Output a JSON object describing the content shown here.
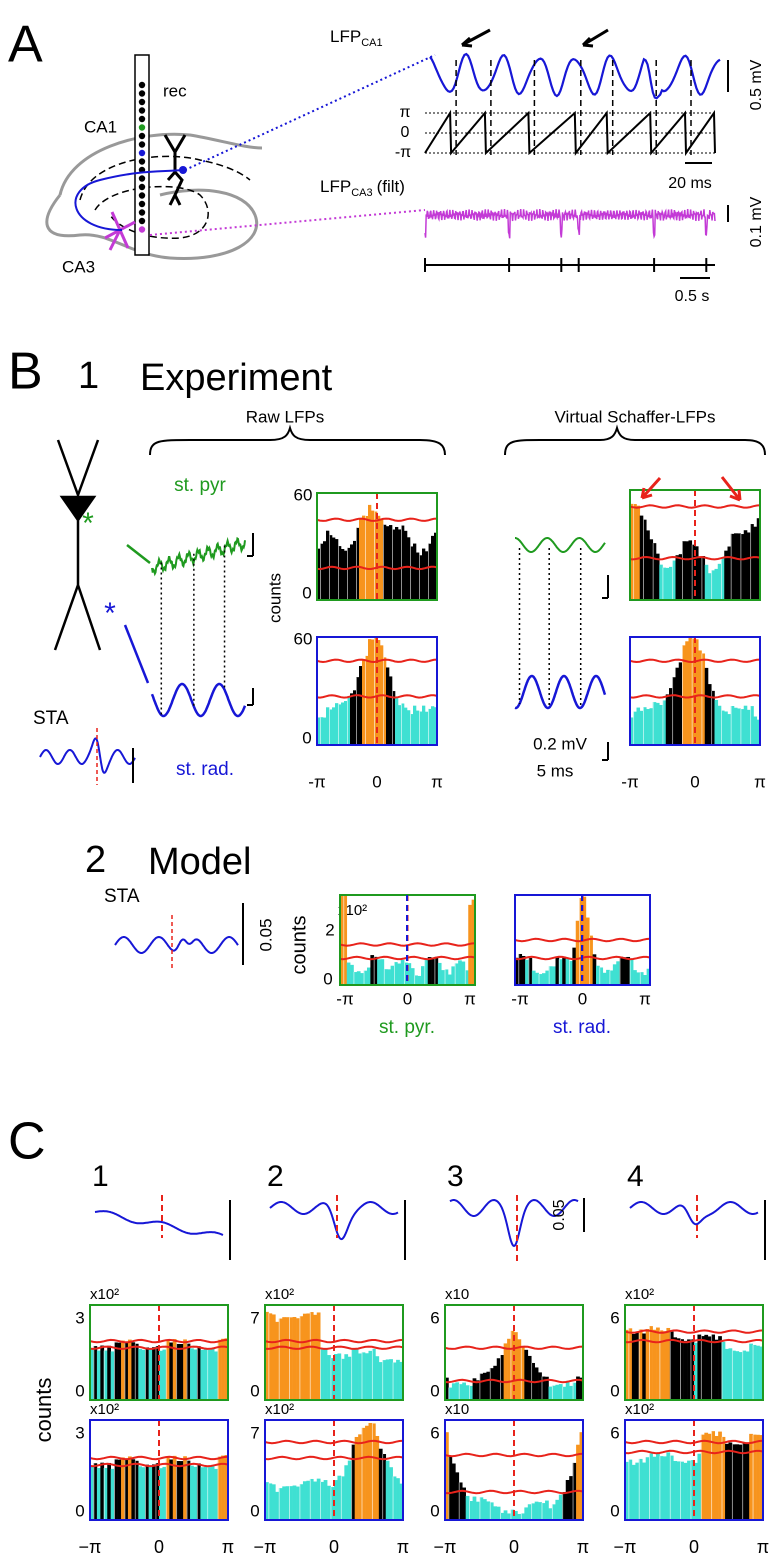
{
  "panel_a": {
    "label": "A",
    "rec": "rec",
    "ca1": "CA1",
    "ca3": "CA3",
    "lfp_ca1": {
      "main": "LFP",
      "sub": "CA1"
    },
    "phase_labels": [
      "π",
      "0",
      "-π"
    ],
    "scale_lfp": "0.5 mV",
    "scale_time_short": "20 ms",
    "lfp_ca3": {
      "main": "LFP",
      "sub": "CA3",
      "suffix": "(filt)"
    },
    "scale_filt": "0.1 mV",
    "scale_time_long": "0.5 s"
  },
  "panel_b1": {
    "label": "B",
    "number": "1",
    "title": "Experiment",
    "raw": "Raw LFPs",
    "virtual": "Virtual Schaffer-LFPs",
    "st_pyr": "st. pyr",
    "st_rad": "st. rad.",
    "asterisk": "*",
    "sta": "STA",
    "count_ticks": [
      "60",
      "0"
    ],
    "counts": "counts",
    "x_ticks": [
      "-π",
      "0",
      "π"
    ],
    "scale_v": "0.2 mV",
    "scale_t": "5 ms"
  },
  "panel_b2": {
    "number": "2",
    "title": "Model",
    "sta": "STA",
    "scale": "0.05",
    "multiplier": "x10²",
    "count_ticks": [
      "2",
      "0"
    ],
    "counts": "counts",
    "x_ticks": [
      "-π",
      "0",
      "π"
    ],
    "st_pyr": "st. pyr.",
    "st_rad": "st. rad."
  },
  "panel_c": {
    "label": "C",
    "scale": "0.05",
    "counts": "counts",
    "x_ticks": [
      "−π",
      "0",
      "π"
    ],
    "columns": [
      {
        "number": "1",
        "multiplier": "x10²",
        "count_ticks": [
          "3",
          "0"
        ]
      },
      {
        "number": "2",
        "multiplier": "x10²",
        "count_ticks": [
          "7",
          "0"
        ]
      },
      {
        "number": "3",
        "multiplier": "x10",
        "count_ticks": [
          "6",
          "0"
        ]
      },
      {
        "number": "4",
        "multiplier": "x10²",
        "count_ticks": [
          "6",
          "0"
        ]
      }
    ]
  }
}
